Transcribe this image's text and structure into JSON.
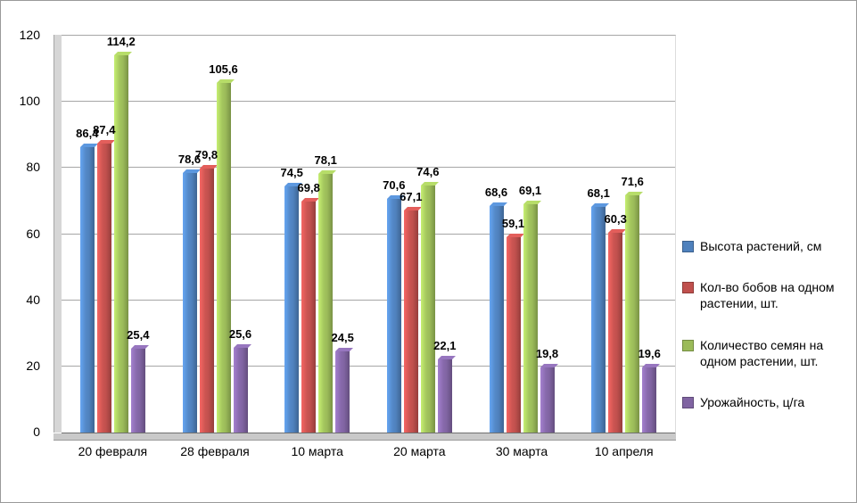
{
  "chart_data": {
    "type": "bar",
    "title": "",
    "xlabel": "",
    "ylabel": "",
    "categories": [
      "20 февраля",
      "28 февраля",
      "10 марта",
      "20 марта",
      "30 марта",
      "10 апреля"
    ],
    "series": [
      {
        "name": "Высота растений, см",
        "color": "#4f81bd",
        "values": [
          86.4,
          78.6,
          74.5,
          70.6,
          68.6,
          68.1
        ]
      },
      {
        "name": "Кол-во бобов на одном растении, шт.",
        "color": "#c0504d",
        "values": [
          87.4,
          79.8,
          69.8,
          67.1,
          59.1,
          60.3
        ]
      },
      {
        "name": "Количество семян на одном растении, шт.",
        "color": "#9bbb59",
        "values": [
          114.2,
          105.6,
          78.1,
          74.6,
          69.1,
          71.6
        ]
      },
      {
        "name": "Урожайность, ц/га",
        "color": "#8064a2",
        "values": [
          25.4,
          25.6,
          24.5,
          22.1,
          19.8,
          19.6
        ]
      }
    ],
    "ylim": [
      0,
      120
    ],
    "yticks": [
      0,
      20,
      40,
      60,
      80,
      100,
      120
    ],
    "grid": true,
    "legend_position": "right",
    "decimal_separator": ",",
    "style": "excel-3d-column"
  }
}
